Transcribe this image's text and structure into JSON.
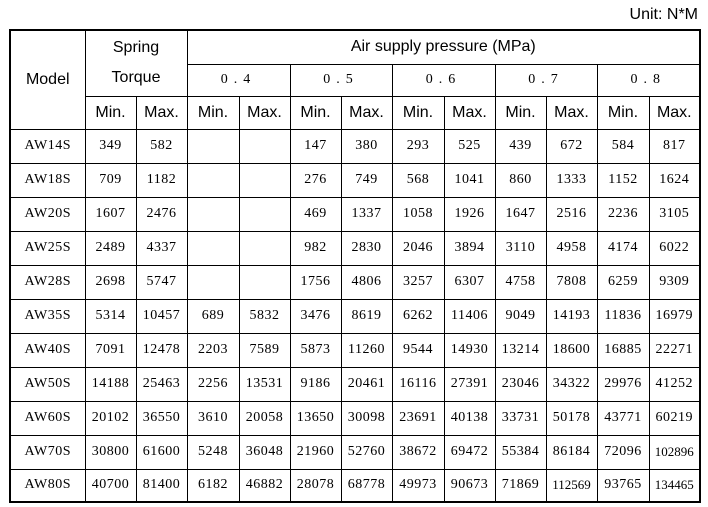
{
  "unit_label": "Unit: N*M",
  "header": {
    "model": "Model",
    "spring_torque_line1": "Spring",
    "spring_torque_line2": "Torque",
    "air_supply": "Air supply pressure (MPa)",
    "pressures": [
      "0.4",
      "0.5",
      "0.6",
      "0.7",
      "0.8"
    ],
    "min": "Min.",
    "max": "Max."
  },
  "rows": [
    {
      "model": "AW14S",
      "cells": [
        "349",
        "582",
        "",
        "",
        "147",
        "380",
        "293",
        "525",
        "439",
        "672",
        "584",
        "817"
      ]
    },
    {
      "model": "AW18S",
      "cells": [
        "709",
        "1182",
        "",
        "",
        "276",
        "749",
        "568",
        "1041",
        "860",
        "1333",
        "1152",
        "1624"
      ]
    },
    {
      "model": "AW20S",
      "cells": [
        "1607",
        "2476",
        "",
        "",
        "469",
        "1337",
        "1058",
        "1926",
        "1647",
        "2516",
        "2236",
        "3105"
      ]
    },
    {
      "model": "AW25S",
      "cells": [
        "2489",
        "4337",
        "",
        "",
        "982",
        "2830",
        "2046",
        "3894",
        "3110",
        "4958",
        "4174",
        "6022"
      ]
    },
    {
      "model": "AW28S",
      "cells": [
        "2698",
        "5747",
        "",
        "",
        "1756",
        "4806",
        "3257",
        "6307",
        "4758",
        "7808",
        "6259",
        "9309"
      ]
    },
    {
      "model": "AW35S",
      "cells": [
        "5314",
        "10457",
        "689",
        "5832",
        "3476",
        "8619",
        "6262",
        "11406",
        "9049",
        "14193",
        "11836",
        "16979"
      ]
    },
    {
      "model": "AW40S",
      "cells": [
        "7091",
        "12478",
        "2203",
        "7589",
        "5873",
        "11260",
        "9544",
        "14930",
        "13214",
        "18600",
        "16885",
        "22271"
      ]
    },
    {
      "model": "AW50S",
      "cells": [
        "14188",
        "25463",
        "2256",
        "13531",
        "9186",
        "20461",
        "16116",
        "27391",
        "23046",
        "34322",
        "29976",
        "41252"
      ]
    },
    {
      "model": "AW60S",
      "cells": [
        "20102",
        "36550",
        "3610",
        "20058",
        "13650",
        "30098",
        "23691",
        "40138",
        "33731",
        "50178",
        "43771",
        "60219"
      ]
    },
    {
      "model": "AW70S",
      "cells": [
        "30800",
        "61600",
        "5248",
        "36048",
        "21960",
        "52760",
        "38672",
        "69472",
        "55384",
        "86184",
        "72096",
        "102896"
      ]
    },
    {
      "model": "AW80S",
      "cells": [
        "40700",
        "81400",
        "6182",
        "46882",
        "28078",
        "68778",
        "49973",
        "90673",
        "71869",
        "112569",
        "93765",
        "134465"
      ]
    }
  ]
}
